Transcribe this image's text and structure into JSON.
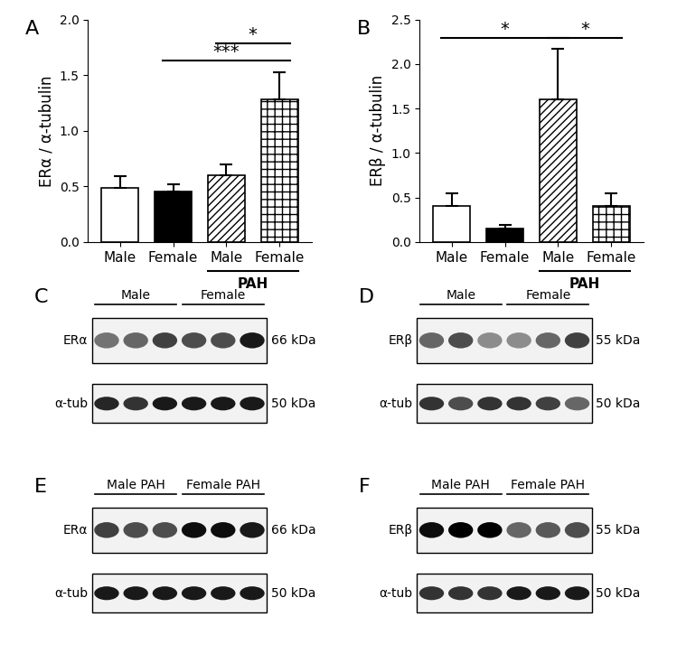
{
  "chart_data": [
    {
      "type": "bar",
      "panel": "A",
      "y_label": "ERα / α-tubulin",
      "categories": [
        "Male",
        "Female",
        "Male",
        "Female"
      ],
      "values": [
        0.49,
        0.45,
        0.6,
        1.28
      ],
      "errors": [
        0.1,
        0.07,
        0.1,
        0.25
      ],
      "colors": [
        "#ffffff",
        "#000000",
        "#ffffff",
        "#ffffff"
      ],
      "groups": [
        {
          "label": "PAH",
          "from": 2,
          "to": 3
        }
      ],
      "significance": [
        {
          "text": "***",
          "from": 1,
          "to": 3
        },
        {
          "text": "*",
          "from": 2,
          "to": 3
        }
      ],
      "ylim": [
        0,
        2.0
      ],
      "yticks": [
        {
          "value": 0,
          "label": "0.0"
        },
        {
          "value": 0.5,
          "label": "0.5"
        },
        {
          "value": 1.0,
          "label": "1.0"
        },
        {
          "value": 1.5,
          "label": "1.5"
        },
        {
          "value": 2.0,
          "label": "2.0"
        }
      ]
    },
    {
      "type": "bar",
      "panel": "B",
      "y_label": "ERβ / α-tubulin",
      "categories": [
        "Male",
        "Female",
        "Male",
        "Female"
      ],
      "values": [
        0.4,
        0.15,
        1.6,
        0.4
      ],
      "errors": [
        0.15,
        0.04,
        0.57,
        0.15
      ],
      "colors": [
        "#ffffff",
        "#000000",
        "#ffffff",
        "#ffffff"
      ],
      "groups": [
        {
          "label": "PAH",
          "from": 2,
          "to": 3
        }
      ],
      "significance": [
        {
          "text": "*",
          "from": 0,
          "to": 2
        },
        {
          "text": "*",
          "from": 2,
          "to": 3
        }
      ],
      "ylim": [
        0,
        2.5
      ],
      "yticks": [
        {
          "value": 0,
          "label": "0.0"
        },
        {
          "value": 0.5,
          "label": "0.5"
        },
        {
          "value": 1.0,
          "label": "1.0"
        },
        {
          "value": 1.5,
          "label": "1.5"
        },
        {
          "value": 2.0,
          "label": "2.0"
        },
        {
          "value": 2.5,
          "label": "2.5"
        }
      ]
    }
  ],
  "blots": [
    {
      "panel": "C",
      "groups": [
        "Male",
        "Female"
      ],
      "rows": [
        {
          "label": "ERα",
          "size": "66 kDa",
          "bands": [
            0.55,
            0.6,
            0.75,
            0.7,
            0.7,
            0.9
          ]
        },
        {
          "label": "α-tub",
          "size": "50 kDa",
          "bands": [
            0.85,
            0.8,
            0.9,
            0.9,
            0.9,
            0.9
          ]
        }
      ]
    },
    {
      "panel": "D",
      "groups": [
        "Male",
        "Female"
      ],
      "rows": [
        {
          "label": "ERβ",
          "size": "55 kDa",
          "bands": [
            0.6,
            0.7,
            0.45,
            0.45,
            0.6,
            0.75
          ]
        },
        {
          "label": "α-tub",
          "size": "50 kDa",
          "bands": [
            0.8,
            0.7,
            0.8,
            0.8,
            0.75,
            0.6
          ]
        }
      ]
    },
    {
      "panel": "E",
      "groups": [
        "Male PAH",
        "Female PAH"
      ],
      "rows": [
        {
          "label": "ERα",
          "size": "66 kDa",
          "bands": [
            0.75,
            0.7,
            0.7,
            0.95,
            0.95,
            0.9
          ]
        },
        {
          "label": "α-tub",
          "size": "50 kDa",
          "bands": [
            0.9,
            0.9,
            0.9,
            0.9,
            0.9,
            0.9
          ]
        }
      ]
    },
    {
      "panel": "F",
      "groups": [
        "Male PAH",
        "Female PAH"
      ],
      "rows": [
        {
          "label": "ERβ",
          "size": "55 kDa",
          "bands": [
            0.95,
            1.0,
            1.0,
            0.6,
            0.65,
            0.7
          ]
        },
        {
          "label": "α-tub",
          "size": "50 kDa",
          "bands": [
            0.8,
            0.8,
            0.8,
            0.9,
            0.9,
            0.9
          ]
        }
      ]
    }
  ]
}
